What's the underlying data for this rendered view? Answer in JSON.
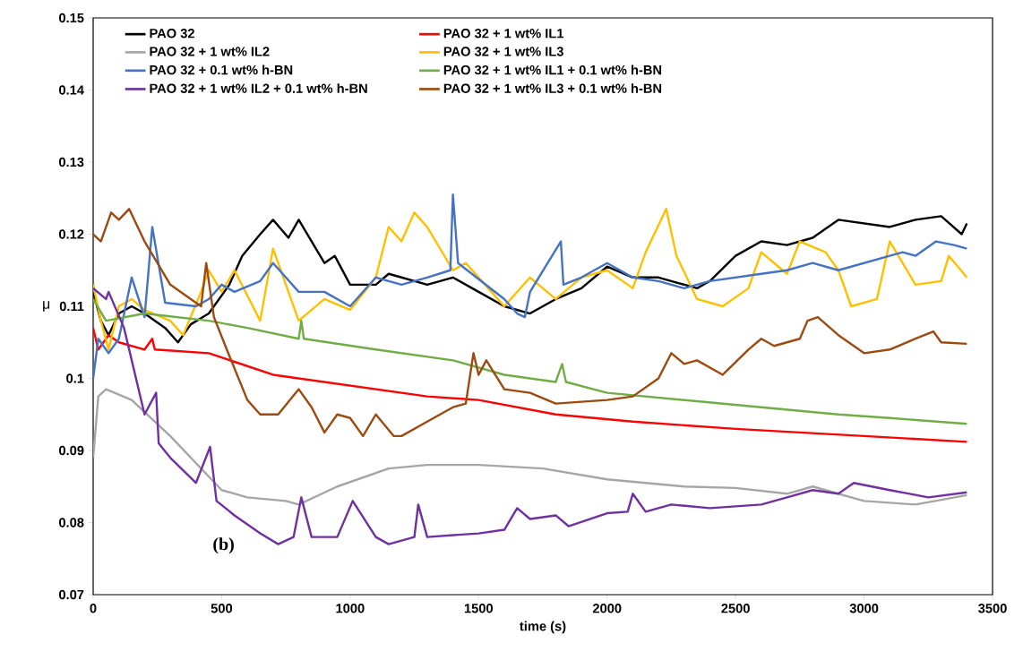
{
  "chart_data": {
    "type": "line",
    "xlabel": "time (s)",
    "ylabel": "μ",
    "annotations": [
      "(b)"
    ],
    "legend": "top",
    "xlim": [
      0,
      3500
    ],
    "ylim": [
      0.07,
      0.15
    ],
    "xticks": [
      0,
      500,
      1000,
      1500,
      2000,
      2500,
      3000,
      3500
    ],
    "yticks": [
      0.07,
      0.08,
      0.09,
      0.1,
      0.11,
      0.12,
      0.13,
      0.14,
      0.15
    ],
    "series": [
      {
        "name": "PAO 32",
        "color": "#000000",
        "x": [
          0,
          30,
          60,
          100,
          150,
          200,
          280,
          330,
          380,
          450,
          530,
          580,
          650,
          700,
          760,
          800,
          900,
          940,
          1000,
          1100,
          1150,
          1300,
          1400,
          1500,
          1600,
          1700,
          1800,
          1900,
          2000,
          2100,
          2200,
          2350,
          2400,
          2500,
          2600,
          2700,
          2800,
          2900,
          3000,
          3100,
          3200,
          3300,
          3380,
          3400
        ],
        "values": [
          0.112,
          0.108,
          0.106,
          0.109,
          0.11,
          0.109,
          0.107,
          0.105,
          0.1075,
          0.109,
          0.113,
          0.117,
          0.12,
          0.122,
          0.1195,
          0.122,
          0.116,
          0.117,
          0.113,
          0.113,
          0.1145,
          0.113,
          0.114,
          0.112,
          0.11,
          0.109,
          0.111,
          0.1125,
          0.1155,
          0.114,
          0.114,
          0.1125,
          0.1135,
          0.117,
          0.119,
          0.1185,
          0.1195,
          0.122,
          0.1215,
          0.121,
          0.122,
          0.1225,
          0.12,
          0.1215
        ]
      },
      {
        "name": "PAO 32 + 1 wt% IL1",
        "color": "#ff0000",
        "x": [
          0,
          20,
          60,
          100,
          200,
          230,
          240,
          450,
          700,
          1000,
          1300,
          1500,
          1800,
          2100,
          2500,
          3000,
          3400
        ],
        "values": [
          0.107,
          0.104,
          0.106,
          0.105,
          0.104,
          0.1055,
          0.104,
          0.1035,
          0.1005,
          0.099,
          0.0975,
          0.097,
          0.095,
          0.094,
          0.093,
          0.092,
          0.0912
        ]
      },
      {
        "name": "PAO 32 + 1 wt% IL2",
        "color": "#a6a6a6",
        "x": [
          0,
          20,
          50,
          150,
          300,
          500,
          600,
          750,
          800,
          950,
          1150,
          1300,
          1500,
          1750,
          2000,
          2300,
          2500,
          2700,
          2800,
          3000,
          3200,
          3400
        ],
        "values": [
          0.089,
          0.0975,
          0.0985,
          0.097,
          0.092,
          0.0845,
          0.0835,
          0.083,
          0.0825,
          0.085,
          0.0875,
          0.088,
          0.088,
          0.0875,
          0.086,
          0.085,
          0.0848,
          0.084,
          0.085,
          0.083,
          0.0825,
          0.0838
        ]
      },
      {
        "name": "PAO 32 + 1 wt% IL3",
        "color": "#ffc000",
        "x": [
          0,
          30,
          60,
          100,
          150,
          200,
          300,
          350,
          420,
          450,
          500,
          550,
          650,
          700,
          800,
          900,
          1000,
          1100,
          1150,
          1200,
          1250,
          1300,
          1400,
          1450,
          1550,
          1600,
          1700,
          1800,
          1900,
          2000,
          2100,
          2150,
          2230,
          2270,
          2350,
          2450,
          2550,
          2600,
          2700,
          2750,
          2850,
          2900,
          2950,
          3050,
          3100,
          3150,
          3200,
          3300,
          3330,
          3400
        ],
        "values": [
          0.113,
          0.108,
          0.104,
          0.11,
          0.111,
          0.1095,
          0.108,
          0.106,
          0.112,
          0.115,
          0.112,
          0.115,
          0.108,
          0.118,
          0.108,
          0.111,
          0.1095,
          0.114,
          0.121,
          0.119,
          0.123,
          0.121,
          0.115,
          0.116,
          0.112,
          0.11,
          0.114,
          0.111,
          0.114,
          0.115,
          0.1125,
          0.1175,
          0.1235,
          0.117,
          0.111,
          0.11,
          0.1125,
          0.1175,
          0.1145,
          0.119,
          0.1175,
          0.115,
          0.11,
          0.111,
          0.119,
          0.116,
          0.113,
          0.1135,
          0.117,
          0.114
        ]
      },
      {
        "name": "PAO 32 + 0.1 wt% h-BN",
        "color": "#4472c4",
        "x": [
          0,
          20,
          60,
          100,
          150,
          200,
          230,
          280,
          400,
          450,
          500,
          550,
          650,
          700,
          800,
          900,
          1000,
          1100,
          1200,
          1300,
          1390,
          1400,
          1420,
          1600,
          1650,
          1680,
          1700,
          1820,
          1830,
          1900,
          2000,
          2100,
          2200,
          2300,
          2400,
          2500,
          2600,
          2700,
          2800,
          2900,
          3000,
          3100,
          3150,
          3200,
          3280,
          3350,
          3400
        ],
        "values": [
          0.1,
          0.1055,
          0.1035,
          0.1055,
          0.114,
          0.1085,
          0.121,
          0.1105,
          0.11,
          0.111,
          0.113,
          0.112,
          0.1135,
          0.116,
          0.112,
          0.112,
          0.11,
          0.114,
          0.113,
          0.114,
          0.115,
          0.1255,
          0.116,
          0.111,
          0.109,
          0.1085,
          0.112,
          0.119,
          0.113,
          0.114,
          0.116,
          0.114,
          0.1135,
          0.1125,
          0.1135,
          0.114,
          0.1145,
          0.115,
          0.116,
          0.115,
          0.116,
          0.117,
          0.1175,
          0.117,
          0.119,
          0.1185,
          0.118
        ]
      },
      {
        "name": "PAO 32 + 1 wt% IL1 + 0.1 wt% h-BN",
        "color": "#70ad47",
        "x": [
          0,
          50,
          200,
          450,
          600,
          800,
          810,
          820,
          1100,
          1400,
          1600,
          1800,
          1825,
          1840,
          2000,
          2300,
          2600,
          2900,
          3100,
          3400
        ],
        "values": [
          0.111,
          0.108,
          0.109,
          0.108,
          0.107,
          0.1055,
          0.108,
          0.1055,
          0.104,
          0.1025,
          0.1005,
          0.0995,
          0.102,
          0.0995,
          0.098,
          0.097,
          0.096,
          0.095,
          0.0945,
          0.0937
        ]
      },
      {
        "name": "PAO 32 + 1 wt% IL2 + 0.1 wt% h-BN",
        "color": "#7030a0",
        "x": [
          0,
          50,
          60,
          120,
          200,
          245,
          255,
          300,
          400,
          455,
          480,
          550,
          650,
          720,
          780,
          810,
          850,
          950,
          1010,
          1100,
          1150,
          1250,
          1265,
          1300,
          1500,
          1600,
          1650,
          1700,
          1800,
          1850,
          2000,
          2080,
          2100,
          2150,
          2250,
          2400,
          2600,
          2700,
          2800,
          2900,
          2960,
          3100,
          3250,
          3400
        ],
        "values": [
          0.1125,
          0.111,
          0.112,
          0.107,
          0.095,
          0.098,
          0.091,
          0.089,
          0.0855,
          0.0905,
          0.083,
          0.081,
          0.0785,
          0.077,
          0.078,
          0.0835,
          0.078,
          0.078,
          0.083,
          0.078,
          0.077,
          0.078,
          0.0825,
          0.078,
          0.0785,
          0.079,
          0.082,
          0.0805,
          0.081,
          0.0795,
          0.0813,
          0.0815,
          0.084,
          0.0815,
          0.0825,
          0.082,
          0.0825,
          0.0835,
          0.0845,
          0.084,
          0.0855,
          0.0845,
          0.0835,
          0.0842
        ]
      },
      {
        "name": "PAO 32 + 1 wt% IL3 + 0.1 wt% h-BN",
        "color": "#9c4a10",
        "x": [
          0,
          30,
          70,
          100,
          140,
          200,
          250,
          300,
          380,
          420,
          440,
          470,
          520,
          600,
          650,
          720,
          800,
          850,
          900,
          950,
          1000,
          1050,
          1100,
          1170,
          1200,
          1300,
          1400,
          1450,
          1480,
          1500,
          1530,
          1600,
          1700,
          1800,
          2000,
          2100,
          2200,
          2250,
          2300,
          2350,
          2450,
          2550,
          2600,
          2650,
          2750,
          2780,
          2820,
          2900,
          3000,
          3100,
          3200,
          3270,
          3300,
          3400
        ],
        "values": [
          0.12,
          0.119,
          0.123,
          0.122,
          0.1235,
          0.119,
          0.116,
          0.113,
          0.111,
          0.11,
          0.116,
          0.1085,
          0.104,
          0.097,
          0.095,
          0.095,
          0.0985,
          0.096,
          0.0925,
          0.095,
          0.0945,
          0.092,
          0.095,
          0.092,
          0.092,
          0.094,
          0.096,
          0.0965,
          0.1035,
          0.1005,
          0.1025,
          0.0985,
          0.098,
          0.0965,
          0.097,
          0.0975,
          0.1,
          0.1035,
          0.102,
          0.1025,
          0.1005,
          0.104,
          0.1055,
          0.1045,
          0.1055,
          0.108,
          0.1085,
          0.106,
          0.1035,
          0.104,
          0.1055,
          0.1065,
          0.105,
          0.1048
        ]
      }
    ]
  }
}
